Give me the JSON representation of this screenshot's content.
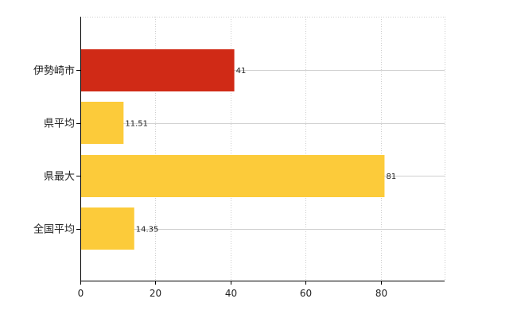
{
  "chart_data": {
    "type": "bar",
    "orientation": "horizontal",
    "title": "",
    "xlabel": "",
    "ylabel": "",
    "categories": [
      "伊勢崎市",
      "県平均",
      "県最大",
      "全国平均"
    ],
    "values": [
      41,
      11.51,
      81,
      14.35
    ],
    "value_labels": [
      "41",
      "11.51",
      "81",
      "14.35"
    ],
    "bar_colors": [
      "#d02a16",
      "#fccb3a",
      "#fccb3a",
      "#fccb3a"
    ],
    "xlim": [
      0,
      97
    ],
    "xticks": [
      0,
      20,
      40,
      60,
      80
    ],
    "xtick_labels": [
      "0",
      "20",
      "40",
      "60",
      "80"
    ],
    "grid": true,
    "legend": "none"
  }
}
